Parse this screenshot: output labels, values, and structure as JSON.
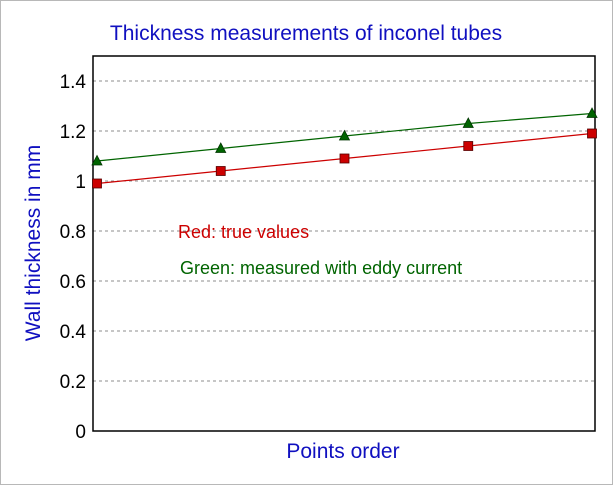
{
  "chart_data": {
    "type": "line",
    "title": "Thickness measurements of inconel tubes",
    "xlabel": "Points order",
    "ylabel": "Wall thickness in mm",
    "ylim": [
      0,
      1.5
    ],
    "y_ticks": [
      "0",
      "0.2",
      "0.4",
      "0.6",
      "0.8",
      "1",
      "1.2",
      "1.4"
    ],
    "grid": "horizontal dashed",
    "x": [
      1,
      2,
      3,
      4,
      5
    ],
    "series": [
      {
        "color": "#cc0000",
        "marker": "square",
        "values": [
          0.99,
          1.04,
          1.09,
          1.14,
          1.19
        ]
      },
      {
        "color": "#006400",
        "marker": "triangle",
        "values": [
          1.08,
          1.13,
          1.18,
          1.23,
          1.27
        ]
      }
    ],
    "annotations": [
      {
        "text": "Red: true values",
        "color": "#cc0000"
      },
      {
        "text": "Green: measured with eddy current",
        "color": "#006400"
      }
    ]
  }
}
